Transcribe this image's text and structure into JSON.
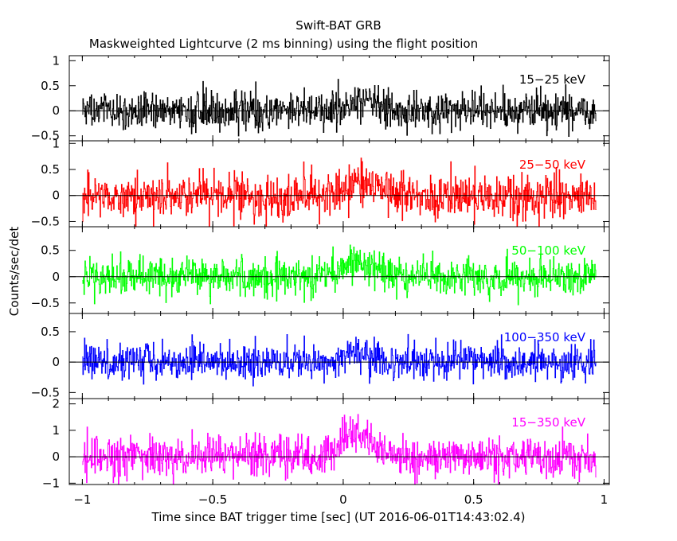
{
  "figure": {
    "title": "Swift-BAT GRB",
    "subtitle": "Maskweighted Lightcurve (2 ms binning) using the flight position",
    "ylabel": "Counts/sec/det",
    "xlabel": "Time since BAT trigger time [sec] (UT 2016-06-01T14:43:02.4)"
  },
  "chart_data": {
    "type": "line",
    "title": "Swift-BAT GRB",
    "subtitle": "Maskweighted Lightcurve (2 ms binning) using the flight position",
    "xlabel": "Time since BAT trigger time [sec] (UT 2016-06-01T14:43:02.4)",
    "ylabel": "Counts/sec/det",
    "xlim": [
      -1.05,
      1.02
    ],
    "x_ticks": [
      -1,
      -0.5,
      0,
      0.5,
      1
    ],
    "x_tick_labels": [
      "−1",
      "−0.5",
      "0",
      "0.5",
      "1"
    ],
    "data_x_range": [
      -1.0,
      0.97
    ],
    "bin_width_s": 0.002,
    "grid": false,
    "panels": [
      {
        "name": "15-25 keV",
        "label": "15−25 keV",
        "color": "#000000",
        "ylim": [
          -0.6,
          1.1
        ],
        "y_ticks": [
          -0.5,
          0,
          0.5,
          1
        ],
        "y_tick_labels": [
          "−0.5",
          "0",
          "0.5",
          "1"
        ],
        "noise_sigma": 0.19,
        "peak": {
          "time": 0.07,
          "amplitude": 0.18,
          "width": 0.06
        }
      },
      {
        "name": "25-50 keV",
        "label": "25−50 keV",
        "color": "#ff0000",
        "ylim": [
          -0.6,
          1.05
        ],
        "y_ticks": [
          -0.5,
          0,
          0.5,
          1
        ],
        "y_tick_labels": [
          "−0.5",
          "0",
          "0.5",
          "1"
        ],
        "noise_sigma": 0.21,
        "peak": {
          "time": 0.07,
          "amplitude": 0.3,
          "width": 0.06
        }
      },
      {
        "name": "50-100 keV",
        "label": "50−100 keV",
        "color": "#00ff00",
        "ylim": [
          -0.7,
          0.95
        ],
        "y_ticks": [
          -0.5,
          0,
          0.5
        ],
        "y_tick_labels": [
          "−0.5",
          "0",
          "0.5"
        ],
        "noise_sigma": 0.18,
        "peak": {
          "time": 0.05,
          "amplitude": 0.32,
          "width": 0.05
        }
      },
      {
        "name": "100-350 keV",
        "label": "100−350 keV",
        "color": "#0000ff",
        "ylim": [
          -0.6,
          0.8
        ],
        "y_ticks": [
          -0.5,
          0,
          0.5
        ],
        "y_tick_labels": [
          "−0.5",
          "0",
          "0.5"
        ],
        "noise_sigma": 0.15,
        "peak": {
          "time": 0.04,
          "amplitude": 0.18,
          "width": 0.04
        }
      },
      {
        "name": "15-350 keV",
        "label": "15−350 keV",
        "color": "#ff00ff",
        "ylim": [
          -1.05,
          2.2
        ],
        "y_ticks": [
          -1,
          0,
          1,
          2
        ],
        "y_tick_labels": [
          "−1",
          "0",
          "1",
          "2"
        ],
        "noise_sigma": 0.38,
        "peak": {
          "time": 0.06,
          "amplitude": 0.9,
          "width": 0.06
        }
      }
    ]
  }
}
